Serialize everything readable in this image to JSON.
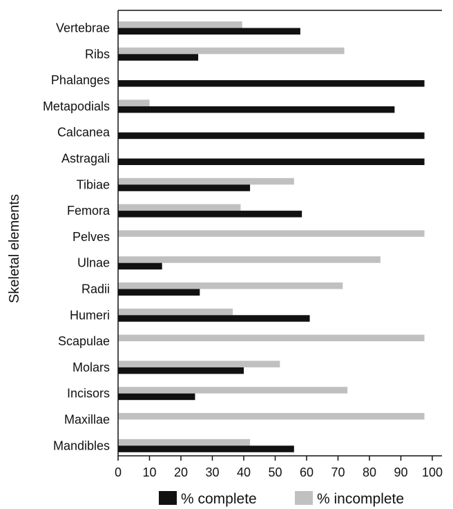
{
  "chart_data": {
    "type": "bar",
    "orientation": "horizontal",
    "title": "",
    "xlabel": "",
    "ylabel": "Skeletal elements",
    "xlim": [
      0,
      100
    ],
    "xticks": [
      0,
      10,
      20,
      30,
      40,
      50,
      60,
      70,
      80,
      90,
      100
    ],
    "categories": [
      "Vertebrae",
      "Ribs",
      "Phalanges",
      "Metapodials",
      "Calcanea",
      "Astragali",
      "Tibiae",
      "Femora",
      "Pelves",
      "Ulnae",
      "Radii",
      "Humeri",
      "Scapulae",
      "Molars",
      "Incisors",
      "Maxillae",
      "Mandibles"
    ],
    "series": [
      {
        "name": "% complete",
        "color": "#111111",
        "values": [
          58,
          25.5,
          97.5,
          88,
          97.5,
          97.5,
          42,
          58.5,
          0,
          14,
          26,
          61,
          0,
          40,
          24.5,
          0,
          56
        ]
      },
      {
        "name": "% incomplete",
        "color": "#c0c0c0",
        "values": [
          39.5,
          72,
          0,
          10,
          0,
          0,
          56,
          39,
          97.5,
          83.5,
          71.5,
          36.5,
          97.5,
          51.5,
          73,
          97.5,
          42
        ]
      }
    ],
    "grid": false,
    "legend_position": "bottom"
  }
}
